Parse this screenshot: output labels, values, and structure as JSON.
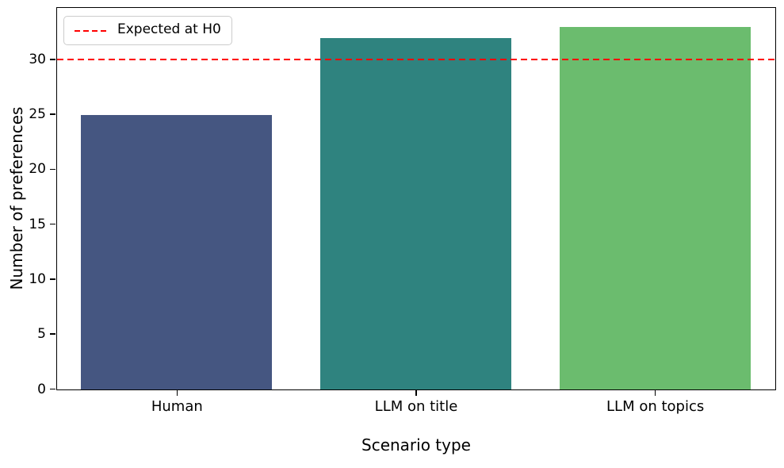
{
  "chart_data": {
    "type": "bar",
    "title": "",
    "xlabel": "Scenario type",
    "ylabel": "Number of preferences",
    "categories": [
      "Human",
      "LLM on title",
      "LLM on topics"
    ],
    "values": [
      25,
      32,
      33
    ],
    "bar_colors": [
      "#455681",
      "#2F837F",
      "#6BBC6E"
    ],
    "ylim": [
      0,
      34.65
    ],
    "yticks": [
      0,
      5,
      10,
      15,
      20,
      25,
      30
    ],
    "grid": false,
    "reference_line": {
      "value": 30,
      "color": "#FF0000",
      "style": "dashed",
      "label": "Expected at H0"
    },
    "legend": {
      "position": "upper-left",
      "entries": [
        {
          "label": "Expected at H0",
          "color": "#FF0000",
          "line_style": "dashed"
        }
      ]
    },
    "colors": {
      "axis": "#000000",
      "background": "#ffffff",
      "legend_border": "#cccccc"
    }
  }
}
